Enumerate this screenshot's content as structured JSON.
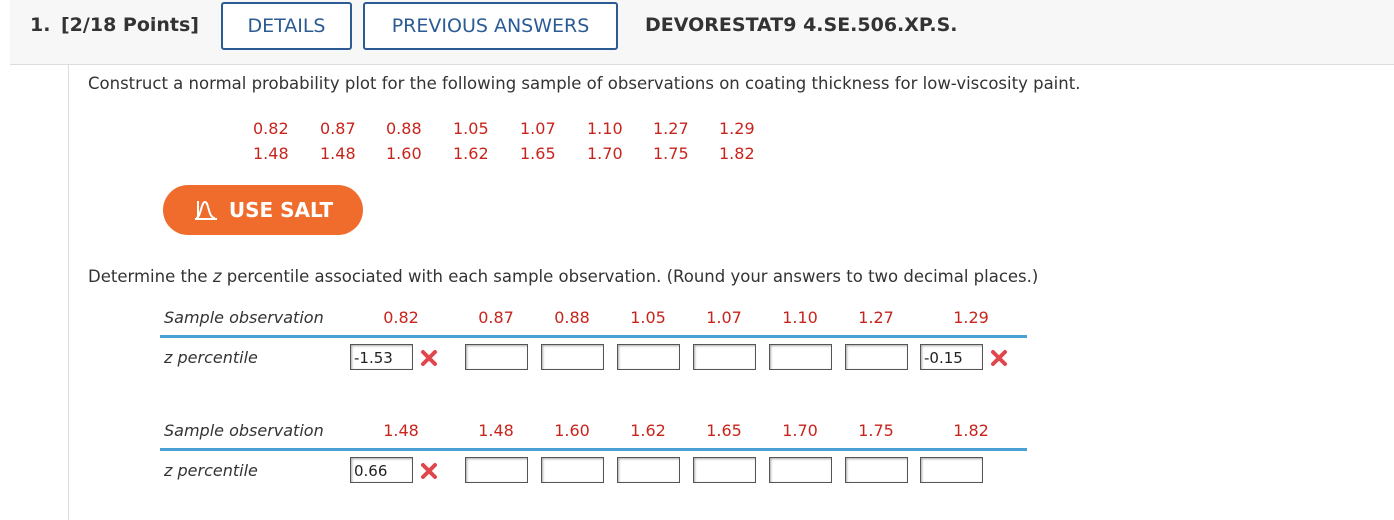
{
  "header": {
    "number": "1.",
    "points": "[2/18 Points]",
    "buttons": [
      "DETAILS",
      "PREVIOUS ANSWERS"
    ],
    "code": "DEVORESTAT9 4.SE.506.XP.S."
  },
  "question": "Construct a normal probability plot for the following sample of observations on coating thickness for low-viscosity paint.",
  "sample": [
    [
      "0.82",
      "0.87",
      "0.88",
      "1.05",
      "1.07",
      "1.10",
      "1.27",
      "1.29"
    ],
    [
      "1.48",
      "1.48",
      "1.60",
      "1.62",
      "1.65",
      "1.70",
      "1.75",
      "1.82"
    ]
  ],
  "salt_button": "USE SALT",
  "instruction": [
    "Determine the ",
    "z",
    " percentile associated with each sample observation. (Round your answers to two decimal places.)"
  ],
  "tables": [
    {
      "row_labels": [
        "Sample observation",
        "z percentile"
      ],
      "observations": [
        "0.82",
        "0.87",
        "0.88",
        "1.05",
        "1.07",
        "1.10",
        "1.27",
        "1.29"
      ],
      "answers": [
        "-1.53",
        null,
        null,
        null,
        null,
        null,
        null,
        "-0.15"
      ]
    },
    {
      "row_labels": [
        "Sample observation",
        "z percentile"
      ],
      "observations": [
        "1.48",
        "1.48",
        "1.60",
        "1.62",
        "1.65",
        "1.70",
        "1.75",
        "1.82"
      ],
      "answers": [
        "0.66",
        null,
        null,
        null,
        null,
        null,
        null,
        null
      ]
    }
  ]
}
